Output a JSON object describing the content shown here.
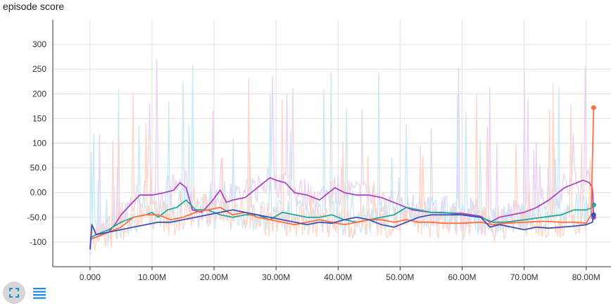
{
  "title": "episode score",
  "colors": {
    "orange": "#ff7043",
    "blue": "#3f51b5",
    "purple": "#ab47bc",
    "teal": "#26a69a",
    "raw_orange": "#ffd5c8",
    "raw_purple": "#ead2f1",
    "raw_cyan": "#c8e8f5",
    "grid": "#e0e0e0",
    "toolbar_icon": "#1e88e5"
  },
  "icons": {
    "expand": "fullscreen-icon",
    "legend": "list-icon"
  },
  "chart_data": {
    "type": "line",
    "title": "episode score",
    "xlabel": "",
    "ylabel": "",
    "xlim": [
      -6000000,
      84000000
    ],
    "ylim": [
      -150,
      350
    ],
    "x_ticks": [
      0,
      10000000,
      20000000,
      30000000,
      40000000,
      50000000,
      60000000,
      70000000,
      80000000
    ],
    "x_tick_labels": [
      "0.000",
      "10.00M",
      "20.00M",
      "30.00M",
      "40.00M",
      "50.00M",
      "60.00M",
      "70.00M",
      "80.00M"
    ],
    "y_ticks": [
      -100,
      -50,
      0,
      50,
      100,
      150,
      200,
      250,
      300
    ],
    "y_tick_labels": [
      "-100",
      "-50.0",
      "0.00",
      "50.0",
      "100",
      "150",
      "200",
      "250",
      "300"
    ],
    "grid": true,
    "legend": "none",
    "series": [
      {
        "color": "#ab47bc",
        "x": [
          0,
          1000000,
          3000000,
          4000000,
          5000000,
          6500000,
          8000000,
          10000000,
          12000000,
          13500000,
          14500000,
          15500000,
          16500000,
          18000000,
          19500000,
          21000000,
          22000000,
          23000000,
          25000000,
          27000000,
          29000000,
          30000000,
          31500000,
          33000000,
          35000000,
          37000000,
          38500000,
          39500000,
          41000000,
          43000000,
          45000000,
          47000000,
          49000000,
          52000000,
          55000000,
          60000000,
          63000000,
          64500000,
          66000000,
          68000000,
          70000000,
          72000000,
          74000000,
          75500000,
          76500000,
          77500000,
          78500000,
          79500000,
          80500000,
          81000000,
          81200000
        ],
        "y": [
          -95,
          -90,
          -80,
          -65,
          -45,
          -25,
          -5,
          -5,
          0,
          5,
          20,
          10,
          -35,
          -40,
          -20,
          5,
          -20,
          -15,
          -10,
          10,
          30,
          25,
          20,
          0,
          -5,
          -15,
          0,
          10,
          0,
          -5,
          -5,
          -10,
          -20,
          -35,
          -40,
          -42,
          -48,
          -60,
          -50,
          -45,
          -40,
          -30,
          -15,
          0,
          10,
          15,
          20,
          25,
          20,
          10,
          -50
        ]
      },
      {
        "color": "#26a69a",
        "x": [
          0,
          1000000,
          3000000,
          5000000,
          7000000,
          9000000,
          10000000,
          11000000,
          12500000,
          14000000,
          15500000,
          17000000,
          19000000,
          21000000,
          23000000,
          25000000,
          27000000,
          29000000,
          31000000,
          33000000,
          35000000,
          37000000,
          39000000,
          41000000,
          43000000,
          45000000,
          47000000,
          49000000,
          51000000,
          53000000,
          55000000,
          57000000,
          60000000,
          63000000,
          65000000,
          67000000,
          70000000,
          73000000,
          76000000,
          78000000,
          80000000,
          81000000,
          81200000
        ],
        "y": [
          -92,
          -85,
          -75,
          -60,
          -50,
          -45,
          -40,
          -50,
          -35,
          -30,
          -15,
          -35,
          -35,
          -45,
          -50,
          -45,
          -45,
          -55,
          -40,
          -45,
          -50,
          -50,
          -45,
          -55,
          -60,
          -55,
          -50,
          -45,
          -30,
          -35,
          -40,
          -40,
          -45,
          -50,
          -60,
          -60,
          -55,
          -50,
          -45,
          -35,
          -35,
          -30,
          -25
        ]
      },
      {
        "color": "#ff7043",
        "x": [
          0,
          1000000,
          3000000,
          5000000,
          7000000,
          9000000,
          11000000,
          13000000,
          15000000,
          17000000,
          19000000,
          21000000,
          23000000,
          25000000,
          27000000,
          29000000,
          31000000,
          33000000,
          35000000,
          37000000,
          39000000,
          41000000,
          43000000,
          45000000,
          47000000,
          49000000,
          51000000,
          53000000,
          55000000,
          57000000,
          60000000,
          63000000,
          65000000,
          67000000,
          70000000,
          73000000,
          76000000,
          78000000,
          80000000,
          80800000,
          81200000
        ],
        "y": [
          -95,
          -90,
          -80,
          -70,
          -50,
          -45,
          -45,
          -55,
          -50,
          -40,
          -35,
          -30,
          -45,
          -40,
          -50,
          -55,
          -60,
          -65,
          -60,
          -55,
          -60,
          -65,
          -60,
          -55,
          -55,
          -60,
          -55,
          -60,
          -60,
          -62,
          -62,
          -60,
          -65,
          -62,
          -60,
          -58,
          -60,
          -60,
          -62,
          -45,
          172
        ]
      },
      {
        "color": "#3f51b5",
        "x": [
          0,
          300000,
          1000000,
          3000000,
          5000000,
          7000000,
          9000000,
          11000000,
          13000000,
          15000000,
          17000000,
          19000000,
          21000000,
          23000000,
          25000000,
          27000000,
          29000000,
          31000000,
          33000000,
          35000000,
          37000000,
          39000000,
          41000000,
          43000000,
          45000000,
          47000000,
          49000000,
          51000000,
          53000000,
          55000000,
          57000000,
          60000000,
          63000000,
          64500000,
          66000000,
          68000000,
          70000000,
          72000000,
          74000000,
          76000000,
          78000000,
          80000000,
          81000000,
          81200000
        ],
        "y": [
          -115,
          -65,
          -85,
          -80,
          -75,
          -70,
          -65,
          -60,
          -60,
          -55,
          -50,
          -45,
          -40,
          -35,
          -40,
          -45,
          -50,
          -55,
          -60,
          -65,
          -60,
          -62,
          -55,
          -50,
          -55,
          -65,
          -70,
          -60,
          -50,
          -45,
          -45,
          -45,
          -50,
          -70,
          -65,
          -70,
          -75,
          -70,
          -72,
          -70,
          -68,
          -65,
          -60,
          -45
        ]
      }
    ]
  }
}
